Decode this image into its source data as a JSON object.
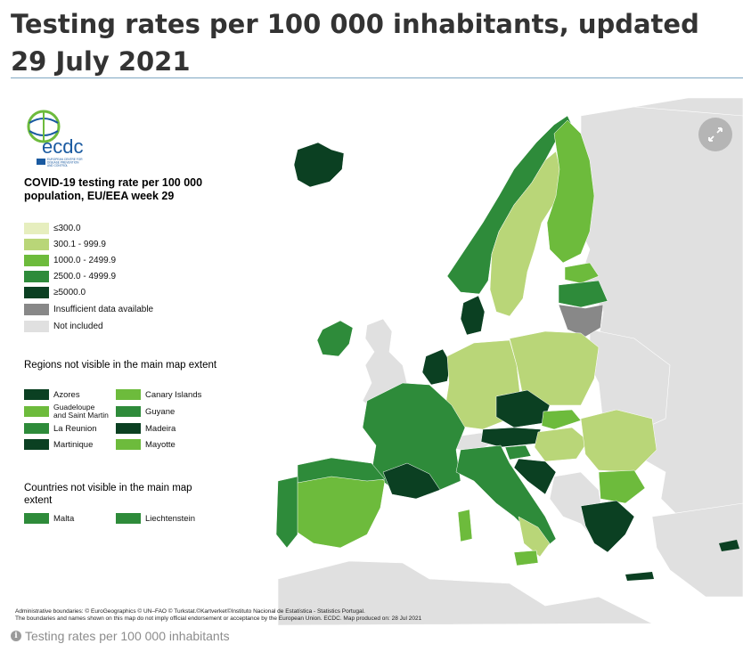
{
  "page": {
    "title": "Testing rates per 100 000 inhabitants, updated 29 July 2021",
    "caption": "Testing rates per 100 000 inhabitants"
  },
  "logo": {
    "wordmark": "ecdc",
    "subtitle_line1": "EUROPEAN CENTRE FOR",
    "subtitle_line2": "DISEASE PREVENTION",
    "subtitle_line3": "AND CONTROL"
  },
  "legend": {
    "title": "COVID-19 testing rate per 100 000 population, EU/EEA week 29",
    "items": [
      {
        "label": "≤300.0",
        "color": "#e6eebe"
      },
      {
        "label": "300.1 - 999.9",
        "color": "#b9d678"
      },
      {
        "label": "1000.0 - 2499.9",
        "color": "#6dbb3c"
      },
      {
        "label": "2500.0 - 4999.9",
        "color": "#2e8b3a"
      },
      {
        "label": "≥5000.0",
        "color": "#0b4022"
      },
      {
        "label": "Insufficient data available",
        "color": "#888888"
      },
      {
        "label": "Not included",
        "color": "#e0e0e0"
      }
    ]
  },
  "regions": {
    "heading": "Regions not visible in the main map extent",
    "items": [
      {
        "label": "Azores",
        "color": "#0b4022"
      },
      {
        "label": "Canary Islands",
        "color": "#6dbb3c"
      },
      {
        "label": "Guadeloupe and Saint Martin",
        "color": "#6dbb3c"
      },
      {
        "label": "Guyane",
        "color": "#2e8b3a"
      },
      {
        "label": "La Reunion",
        "color": "#2e8b3a"
      },
      {
        "label": "Madeira",
        "color": "#0b4022"
      },
      {
        "label": "Martinique",
        "color": "#0b4022"
      },
      {
        "label": "Mayotte",
        "color": "#6dbb3c"
      }
    ]
  },
  "countries": {
    "heading": "Countries not visible in the main map extent",
    "items": [
      {
        "label": "Malta",
        "color": "#2e8b3a"
      },
      {
        "label": "Liechtenstein",
        "color": "#2e8b3a"
      }
    ]
  },
  "credits": {
    "line1": "Administrative boundaries: © EuroGeographics © UN–FAO © Turkstat.©Kartverket©Instituto Nacional de Estatística - Statistics Portugal.",
    "line2": "The boundaries and names shown on this map do not imply official endorsement or acceptance by the European Union. ECDC. Map produced on: 28 Jul 2021"
  },
  "controls": {
    "expand_icon": "expand-arrows-icon",
    "info_icon": "info-icon"
  }
}
